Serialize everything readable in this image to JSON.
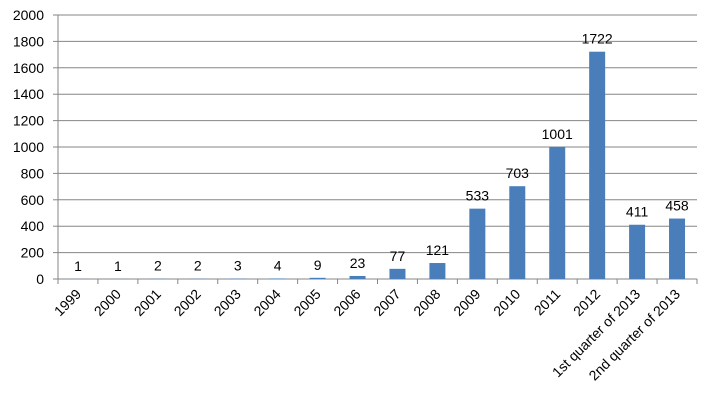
{
  "chart_data": {
    "type": "bar",
    "title": "",
    "xlabel": "",
    "ylabel": "",
    "categories": [
      "1999",
      "2000",
      "2001",
      "2002",
      "2003",
      "2004",
      "2005",
      "2006",
      "2007",
      "2008",
      "2009",
      "2010",
      "2011",
      "2012",
      "1st quarter of 2013",
      "2nd quarter of 2013"
    ],
    "values": [
      1,
      1,
      2,
      2,
      3,
      4,
      9,
      23,
      77,
      121,
      533,
      703,
      1001,
      1722,
      411,
      458
    ],
    "data_labels": [
      "1",
      "1",
      "2",
      "2",
      "3",
      "4",
      "9",
      "23",
      "77",
      "121",
      "533",
      "703",
      "1001",
      "1722",
      "411",
      "458"
    ],
    "ylim": [
      0,
      2000
    ],
    "yticks": [
      "0",
      "200",
      "400",
      "600",
      "800",
      "1000",
      "1200",
      "1400",
      "1600",
      "1800",
      "2000"
    ],
    "grid": true,
    "legend": "none",
    "bar_color": "#4a7ebb",
    "grid_color": "#868686"
  }
}
